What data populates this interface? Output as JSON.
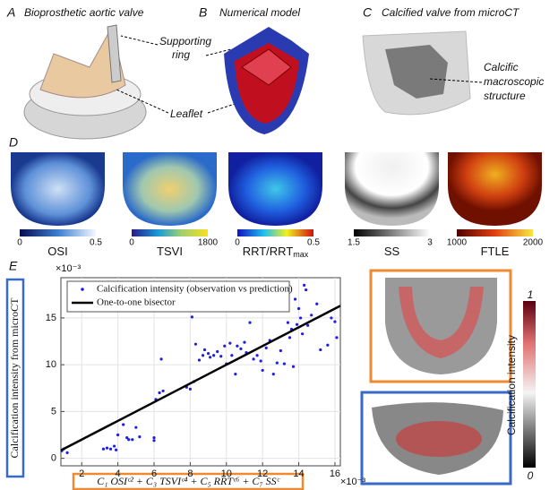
{
  "panel_a": {
    "letter": "A",
    "title": "Bioprosthetic aortic valve",
    "ring_label": [
      "Supporting",
      "ring"
    ],
    "leaflet_label": "Leaflet"
  },
  "panel_b": {
    "letter": "B",
    "title": "Numerical model"
  },
  "panel_c": {
    "letter": "C",
    "title": "Calcified valve from microCT",
    "structure_label": [
      "Calcific",
      "macroscopic",
      "structure"
    ]
  },
  "panel_d": {
    "letter": "D",
    "maps": [
      {
        "label": "OSI",
        "min": "0",
        "max": "0.5"
      },
      {
        "label": "TSVI",
        "min": "0",
        "max": "1800"
      },
      {
        "label": "RRT/RRT",
        "label_sub": "max",
        "min": "0",
        "max": "0.5"
      },
      {
        "label": "SS",
        "min": "1.5",
        "max": "3"
      },
      {
        "label": "FTLE",
        "min": "1000",
        "max": "2000"
      }
    ]
  },
  "panel_e": {
    "letter": "E",
    "colorbar_label": "Calcification intensity",
    "colorbar_max": "1",
    "colorbar_min": "0"
  },
  "chart_data": {
    "type": "scatter",
    "ylabel": "Calcification intensity from microCT",
    "xlabel": "C₁ OSIᶜ² + C₃ TSVIᶜ⁴ + C₅ RRTᶜ⁶ + C₇ SSᶜ",
    "y_multiplier": "×10⁻³",
    "x_multiplier": "×10⁻³",
    "xlim": [
      0.85,
      16.3
    ],
    "ylim": [
      -0.8,
      19.3
    ],
    "xticks": [
      2,
      4,
      6,
      8,
      10,
      12,
      14,
      16
    ],
    "yticks": [
      0,
      5,
      10,
      15
    ],
    "grid": true,
    "series": [
      {
        "name": "Calcification intensity (observation vs prediction)",
        "color": "#1f1fe0",
        "x": [
          0.9,
          1.0,
          1.2,
          3.2,
          3.4,
          3.6,
          3.8,
          3.9,
          4.0,
          4.3,
          4.5,
          4.6,
          4.8,
          5.0,
          5.2,
          6.0,
          6.0,
          6.1,
          6.3,
          6.4,
          6.5,
          7.8,
          8.0,
          8.1,
          8.2,
          8.3,
          8.5,
          8.7,
          8.8,
          9.0,
          9.1,
          9.3,
          9.5,
          9.7,
          9.9,
          10.0,
          10.2,
          10.3,
          10.5,
          10.6,
          10.8,
          11.0,
          11.1,
          11.3,
          11.5,
          11.7,
          11.9,
          12.0,
          12.2,
          12.4,
          12.6,
          12.8,
          13.0,
          13.2,
          13.4,
          13.5,
          13.6,
          13.7,
          13.8,
          13.9,
          14.0,
          14.1,
          14.2,
          14.3,
          14.4,
          14.5,
          14.7,
          15.0,
          15.2,
          15.6,
          15.8,
          16.0,
          16.1
        ],
        "values": [
          0.8,
          1.0,
          0.6,
          1.0,
          1.1,
          1.0,
          1.3,
          0.9,
          2.5,
          3.6,
          2.2,
          2.0,
          2.0,
          3.3,
          2.3,
          1.9,
          2.2,
          6.3,
          7.0,
          10.6,
          7.2,
          7.6,
          7.4,
          15.1,
          8.2,
          12.2,
          10.5,
          11.0,
          11.6,
          11.2,
          10.8,
          11.0,
          11.4,
          10.9,
          12.0,
          10.1,
          12.3,
          11.0,
          9.0,
          12.0,
          11.7,
          12.4,
          11.3,
          14.5,
          10.6,
          11.0,
          10.4,
          9.4,
          11.8,
          12.6,
          9.0,
          10.2,
          11.5,
          10.1,
          14.5,
          12.9,
          13.8,
          9.8,
          17.0,
          14.3,
          16.0,
          15.0,
          13.3,
          18.5,
          18.0,
          14.2,
          15.3,
          16.5,
          11.6,
          12.1,
          15.0,
          14.6,
          12.9
        ]
      },
      {
        "name": "One-to-one bisector",
        "color": "#000000",
        "type": "line",
        "x": [
          0.85,
          16.3
        ],
        "values": [
          0.85,
          16.3
        ]
      }
    ]
  }
}
